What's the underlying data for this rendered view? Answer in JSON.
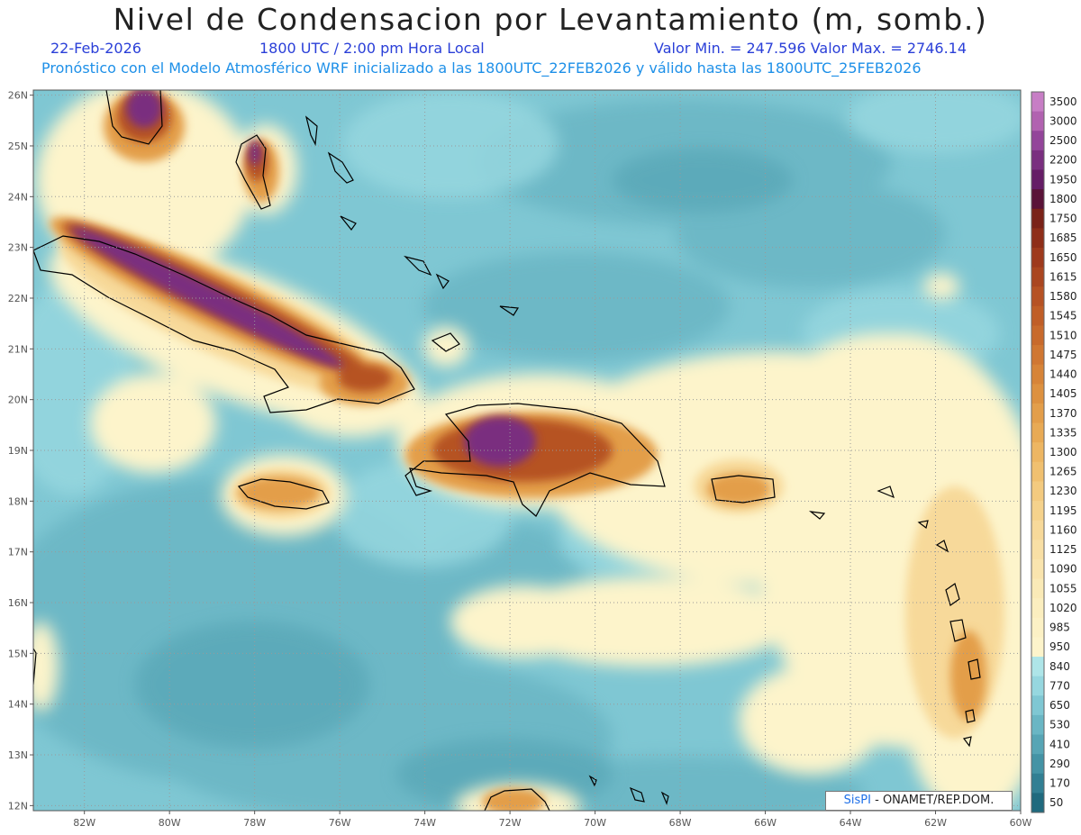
{
  "header": {
    "title": "Nivel de Condensacion por Levantamiento (m, somb.)",
    "date": "22-Feb-2026",
    "time": "1800 UTC / 2:00 pm Hora Local",
    "min_max": "Valor Min. = 247.596  Valor Max. = 2746.14",
    "model_info": "Pronóstico con el Modelo Atmosférico WRF inicializado a las 1800UTC_22FEB2026 y válido hasta las  1800UTC_25FEB2026"
  },
  "map": {
    "lon_range": [
      -83.2,
      -60.0
    ],
    "lat_range": [
      11.9,
      26.1
    ],
    "lon_ticks": [
      "82W",
      "80W",
      "78W",
      "76W",
      "74W",
      "72W",
      "70W",
      "68W",
      "66W",
      "64W",
      "62W",
      "60W"
    ],
    "lat_ticks": [
      "26N",
      "25N",
      "24N",
      "23N",
      "22N",
      "21N",
      "20N",
      "19N",
      "18N",
      "17N",
      "16N",
      "15N",
      "14N",
      "13N",
      "12N"
    ],
    "grid": true
  },
  "colorbar": {
    "labels": [
      "3500",
      "3000",
      "2500",
      "2200",
      "1950",
      "1800",
      "1750",
      "1685",
      "1650",
      "1615",
      "1580",
      "1545",
      "1510",
      "1475",
      "1440",
      "1405",
      "1370",
      "1335",
      "1300",
      "1265",
      "1230",
      "1195",
      "1160",
      "1125",
      "1090",
      "1055",
      "1020",
      "985",
      "950",
      "840",
      "770",
      "650",
      "530",
      "410",
      "290",
      "170",
      "50"
    ],
    "colors": [
      "#c77ec5",
      "#b162b0",
      "#93459a",
      "#7a2f7f",
      "#651d66",
      "#5a1338",
      "#7a2218",
      "#8e2e19",
      "#9e3a1d",
      "#aa4620",
      "#b65224",
      "#c05e27",
      "#c86a2c",
      "#d07732",
      "#d78438",
      "#dd9140",
      "#e39e4a",
      "#e8aa55",
      "#edb663",
      "#f0c070",
      "#f3ca7f",
      "#f5d28c",
      "#f7d99a",
      "#f8dfa5",
      "#f9e4ae",
      "#faeab7",
      "#fbeebf",
      "#fcf1c5",
      "#fdf4cb",
      "#aee5e8",
      "#96d7df",
      "#7fc7d3",
      "#6ab6c4",
      "#57a5b5",
      "#4493a5",
      "#327f93",
      "#206a7e"
    ]
  },
  "credit": {
    "brand": "SisPI",
    "text": " - ONAMET/REP.DOM."
  }
}
